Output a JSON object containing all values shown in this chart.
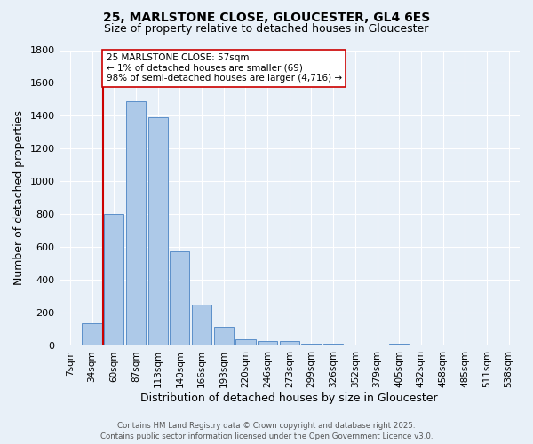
{
  "title": "25, MARLSTONE CLOSE, GLOUCESTER, GL4 6ES",
  "subtitle": "Size of property relative to detached houses in Gloucester",
  "xlabel": "Distribution of detached houses by size in Gloucester",
  "ylabel": "Number of detached properties",
  "bin_labels": [
    "7sqm",
    "34sqm",
    "60sqm",
    "87sqm",
    "113sqm",
    "140sqm",
    "166sqm",
    "193sqm",
    "220sqm",
    "246sqm",
    "273sqm",
    "299sqm",
    "326sqm",
    "352sqm",
    "379sqm",
    "405sqm",
    "432sqm",
    "458sqm",
    "485sqm",
    "511sqm",
    "538sqm"
  ],
  "bar_values": [
    10,
    140,
    800,
    1490,
    1390,
    575,
    250,
    115,
    40,
    28,
    28,
    12,
    12,
    0,
    0,
    12,
    0,
    0,
    0,
    0,
    0
  ],
  "bar_color": "#adc9e8",
  "bar_edge_color": "#5b8fc9",
  "background_color": "#e8f0f8",
  "grid_color": "#ffffff",
  "vline_color": "#cc0000",
  "annotation_text": "25 MARLSTONE CLOSE: 57sqm\n← 1% of detached houses are smaller (69)\n98% of semi-detached houses are larger (4,716) →",
  "annotation_box_color": "#ffffff",
  "annotation_box_edge": "#cc0000",
  "ylim": [
    0,
    1800
  ],
  "yticks": [
    0,
    200,
    400,
    600,
    800,
    1000,
    1200,
    1400,
    1600,
    1800
  ],
  "footer_line1": "Contains HM Land Registry data © Crown copyright and database right 2025.",
  "footer_line2": "Contains public sector information licensed under the Open Government Licence v3.0.",
  "vline_index": 2
}
